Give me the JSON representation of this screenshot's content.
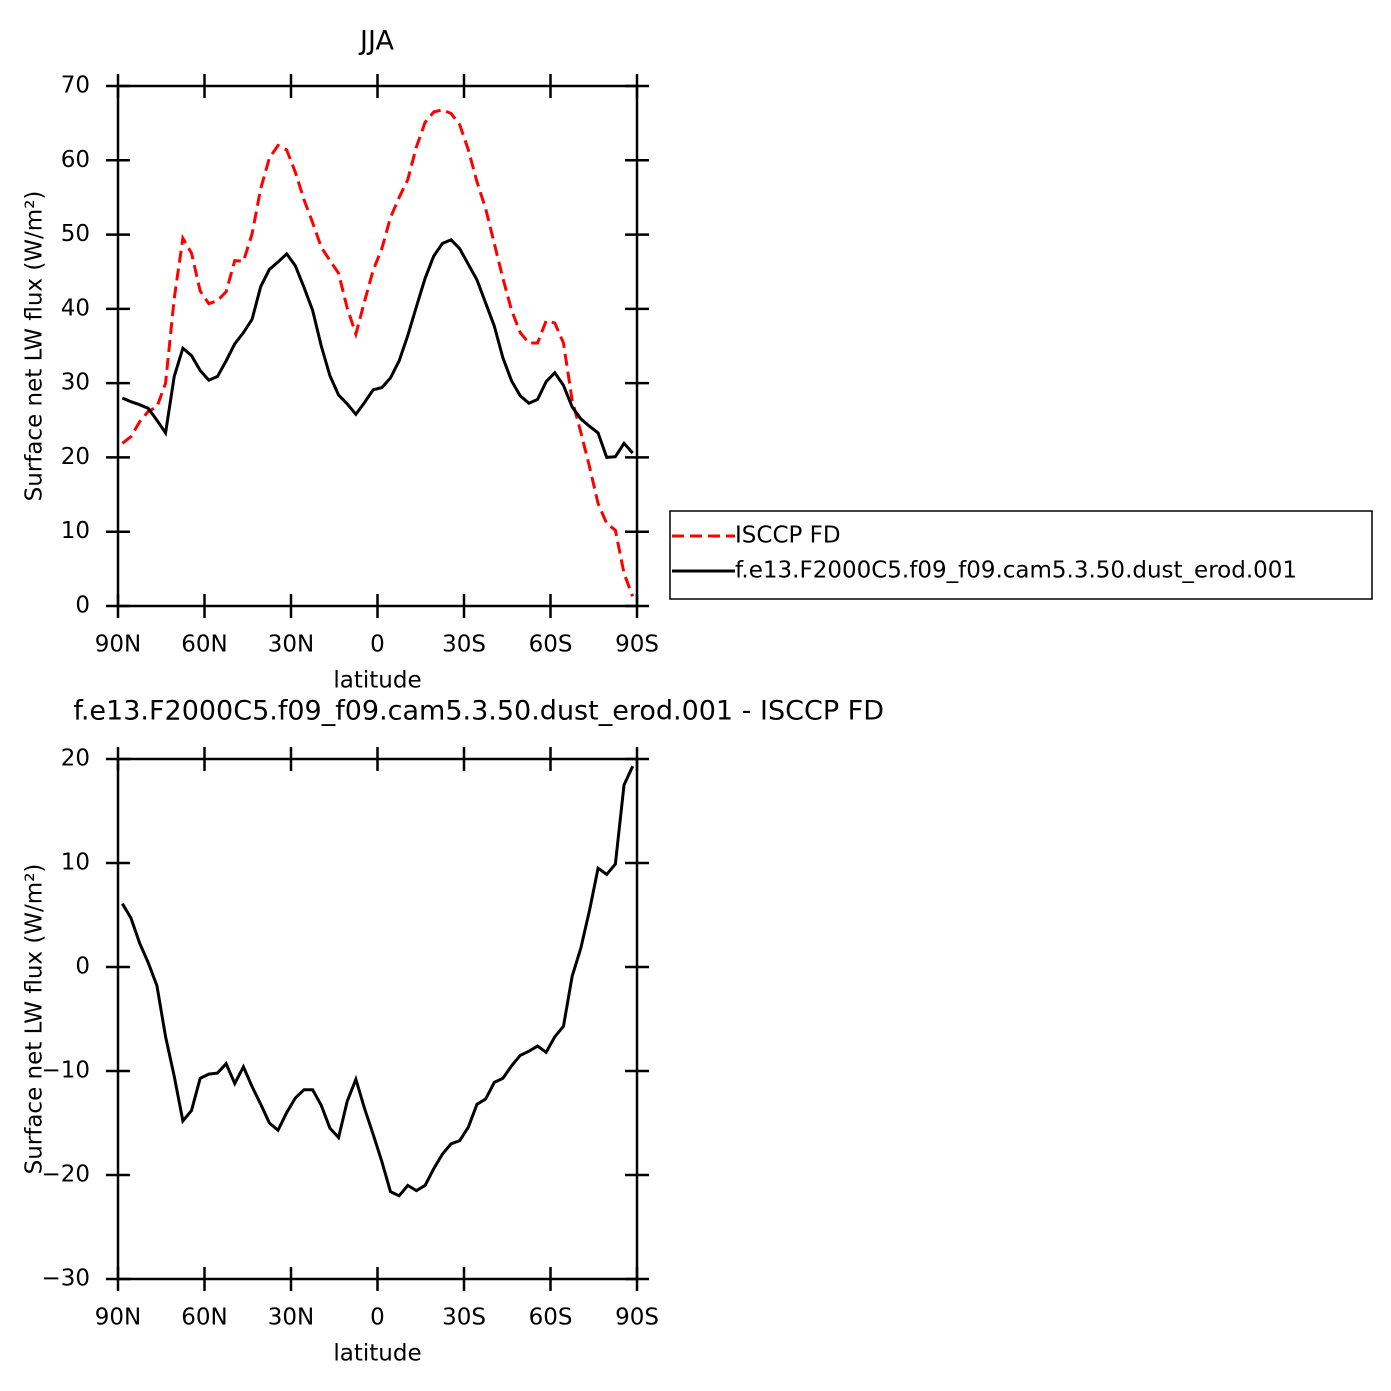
{
  "chart_data": [
    {
      "type": "line",
      "title": "JJA",
      "xlabel": "latitude",
      "ylabel": "Surface net LW flux (W/m²)",
      "x": [
        88.5,
        85.5,
        82.5,
        79.5,
        76.5,
        73.5,
        70.5,
        67.5,
        64.5,
        61.5,
        58.5,
        55.5,
        52.5,
        49.5,
        46.5,
        43.5,
        40.5,
        37.5,
        34.5,
        31.5,
        28.5,
        25.5,
        22.5,
        19.5,
        16.5,
        13.5,
        10.5,
        7.5,
        4.5,
        1.5,
        -1.5,
        -4.5,
        -7.5,
        -10.5,
        -13.5,
        -16.5,
        -19.5,
        -22.5,
        -25.5,
        -28.5,
        -31.5,
        -34.5,
        -37.5,
        -40.5,
        -43.5,
        -46.5,
        -49.5,
        -52.5,
        -55.5,
        -58.5,
        -61.5,
        -64.5,
        -67.5,
        -70.5,
        -73.5,
        -76.5,
        -79.5,
        -82.5,
        -85.5,
        -88.5
      ],
      "series": [
        {
          "name": "ISCCP FD",
          "color": "#ff0000",
          "dash": true,
          "values": [
            21.9,
            22.8,
            24.8,
            26.2,
            26.8,
            30,
            41.4,
            49.5,
            47.5,
            42.4,
            40.7,
            41.1,
            42.3,
            46.5,
            46.4,
            50.1,
            56.2,
            60.3,
            62,
            61.4,
            58.4,
            54.7,
            51.6,
            48.3,
            46.5,
            44.8,
            40.1,
            36.6,
            41,
            45.2,
            48.1,
            52.3,
            55,
            57.4,
            61.8,
            65.1,
            66.5,
            66.8,
            66.3,
            64.8,
            61.4,
            57.1,
            53.5,
            48.8,
            44.1,
            39.8,
            36.8,
            35.4,
            35.4,
            38.4,
            38.1,
            35.4,
            27.7,
            23.4,
            18.8,
            13.8,
            11.1,
            10.2,
            4.4,
            1.3
          ]
        },
        {
          "name": "f.e13.F2000C5.f09_f09.cam5.3.50.dust_erod.001",
          "color": "#000000",
          "dash": false,
          "values": [
            28,
            27.5,
            27.1,
            26.6,
            25,
            23.3,
            30.9,
            34.7,
            33.7,
            31.7,
            30.4,
            30.9,
            33,
            35.3,
            36.8,
            38.6,
            43,
            45.3,
            46.3,
            47.4,
            45.8,
            42.9,
            39.8,
            35,
            31,
            28.4,
            27.2,
            25.8,
            27.4,
            29.1,
            29.4,
            30.7,
            33,
            36.4,
            40.3,
            44.1,
            47.1,
            48.8,
            49.3,
            48.1,
            46,
            43.9,
            40.8,
            37.7,
            33.4,
            30.3,
            28.3,
            27.3,
            27.8,
            30.2,
            31.4,
            29.7,
            26.8,
            25.2,
            24.2,
            23.3,
            20,
            20.1,
            21.9,
            20.6
          ]
        }
      ],
      "xlim": [
        90,
        -90
      ],
      "xticks": [
        {
          "value": 90,
          "label": "90N"
        },
        {
          "value": 60,
          "label": "60N"
        },
        {
          "value": 30,
          "label": "30N"
        },
        0,
        {
          "value": -30,
          "label": "30S"
        },
        {
          "value": -60,
          "label": "60S"
        },
        {
          "value": -90,
          "label": "90S"
        }
      ],
      "ylim": [
        0,
        70
      ],
      "yticks": [
        0,
        10,
        20,
        30,
        40,
        50,
        60,
        70
      ],
      "legend": "right"
    },
    {
      "type": "line",
      "title": "f.e13.F2000C5.f09_f09.cam5.3.50.dust_erod.001 - ISCCP FD",
      "xlabel": "latitude",
      "ylabel": "Surface net LW flux (W/m²)",
      "x": [
        88.5,
        85.5,
        82.5,
        79.5,
        76.5,
        73.5,
        70.5,
        67.5,
        64.5,
        61.5,
        58.5,
        55.5,
        52.5,
        49.5,
        46.5,
        43.5,
        40.5,
        37.5,
        34.5,
        31.5,
        28.5,
        25.5,
        22.5,
        19.5,
        16.5,
        13.5,
        10.5,
        7.5,
        4.5,
        1.5,
        -1.5,
        -4.5,
        -7.5,
        -10.5,
        -13.5,
        -16.5,
        -19.5,
        -22.5,
        -25.5,
        -28.5,
        -31.5,
        -34.5,
        -37.5,
        -40.5,
        -43.5,
        -46.5,
        -49.5,
        -52.5,
        -55.5,
        -58.5,
        -61.5,
        -64.5,
        -67.5,
        -70.5,
        -73.5,
        -76.5,
        -79.5,
        -82.5,
        -85.5,
        -88.5
      ],
      "series": [
        {
          "color": "#000000",
          "dash": false,
          "values": [
            6.1,
            4.7,
            2.3,
            0.4,
            -1.8,
            -6.7,
            -10.5,
            -14.8,
            -13.8,
            -10.7,
            -10.3,
            -10.2,
            -9.3,
            -11.2,
            -9.6,
            -11.5,
            -13.2,
            -15,
            -15.7,
            -14,
            -12.6,
            -11.8,
            -11.8,
            -13.3,
            -15.5,
            -16.4,
            -12.9,
            -10.8,
            -13.6,
            -16.1,
            -18.7,
            -21.6,
            -22,
            -21,
            -21.5,
            -21,
            -19.4,
            -18,
            -17,
            -16.7,
            -15.4,
            -13.2,
            -12.7,
            -11.1,
            -10.7,
            -9.5,
            -8.5,
            -8.1,
            -7.6,
            -8.2,
            -6.7,
            -5.7,
            -0.9,
            1.8,
            5.4,
            9.5,
            8.9,
            9.9,
            17.5,
            19.3
          ]
        }
      ],
      "xlim": [
        90,
        -90
      ],
      "xticks": [
        {
          "value": 90,
          "label": "90N"
        },
        {
          "value": 60,
          "label": "60N"
        },
        {
          "value": 30,
          "label": "30N"
        },
        0,
        {
          "value": -30,
          "label": "30S"
        },
        {
          "value": -60,
          "label": "60S"
        },
        {
          "value": -90,
          "label": "90S"
        }
      ],
      "ylim": [
        -30,
        20
      ],
      "yticks": [
        {
          "value": -30,
          "label": "−30"
        },
        {
          "value": -20,
          "label": "−20"
        },
        {
          "value": -10,
          "label": "−10"
        },
        0,
        10,
        20
      ]
    }
  ]
}
